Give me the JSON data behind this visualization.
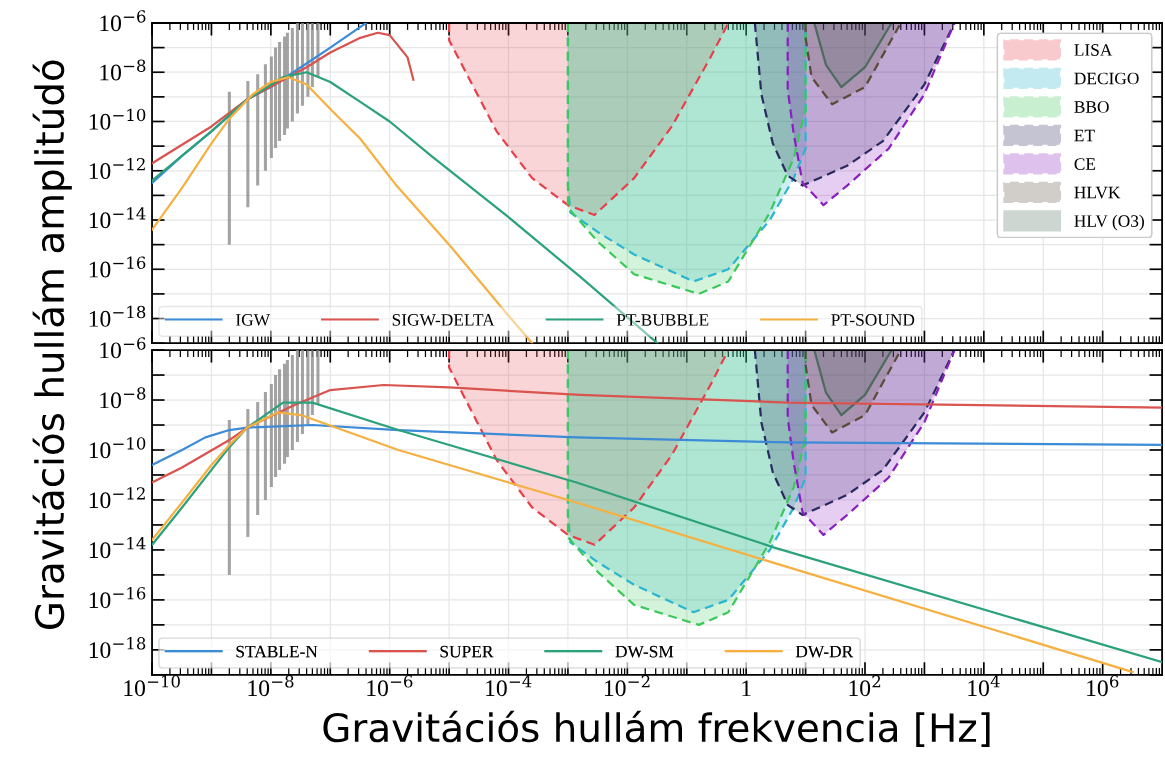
{
  "chart_data": [
    {
      "type": "line",
      "log": "xy",
      "grid": true,
      "legend": "bottom",
      "tick_labels": "y",
      "xlim": [
        1e-10,
        10000000.0
      ],
      "ylim": [
        1e-19,
        1e-06
      ],
      "xticks": [
        {
          "value": 1e-10,
          "label": null
        },
        {
          "value": 1e-09,
          "label": null
        },
        {
          "value": 1e-08,
          "label": null
        },
        {
          "value": 1e-07,
          "label": null
        },
        {
          "value": 1e-06,
          "label": null
        },
        {
          "value": 1e-05,
          "label": null
        },
        {
          "value": 0.0001,
          "label": null
        },
        {
          "value": 0.001,
          "label": null
        },
        {
          "value": 0.01,
          "label": null
        },
        {
          "value": 0.1,
          "label": null
        },
        {
          "value": 1,
          "label": null
        },
        {
          "value": 10,
          "label": null
        },
        {
          "value": 100,
          "label": null
        },
        {
          "value": 1000,
          "label": null
        },
        {
          "value": 10000,
          "label": null
        },
        {
          "value": 100000,
          "label": null
        },
        {
          "value": 1000000,
          "label": null
        }
      ],
      "yticks": [
        {
          "value": 1e-19,
          "label": null
        },
        {
          "value": 1e-18,
          "label": "10$^{−18}$"
        },
        {
          "value": 1e-17,
          "label": null
        },
        {
          "value": 1e-16,
          "label": "10$^{−16}$"
        },
        {
          "value": 1e-15,
          "label": null
        },
        {
          "value": 1e-14,
          "label": "10$^{−14}$"
        },
        {
          "value": 1e-13,
          "label": null
        },
        {
          "value": 1e-12,
          "label": "10$^{−12}$"
        },
        {
          "value": 1e-11,
          "label": null
        },
        {
          "value": 1e-10,
          "label": "10$^{−10}$"
        },
        {
          "value": 1e-09,
          "label": null
        },
        {
          "value": 1e-08,
          "label": "10$^{−8}$"
        },
        {
          "value": 1e-07,
          "label": null
        },
        {
          "value": 1e-06,
          "label": "10$^{−6}$"
        }
      ],
      "series": [
        {
          "name": "LISA",
          "type": "area",
          "line_style": "dashed",
          "color": "#e8404a",
          "x": [
            1e-05,
            1e-05,
            6.3e-05,
            0.00025,
            0.001,
            0.0028,
            0.013,
            0.056,
            0.25,
            0.5
          ],
          "values": [
            1e-06,
            2e-07,
            4e-11,
            5e-13,
            4e-14,
            1.6e-14,
            5e-13,
            6.3e-11,
            4e-08,
            1e-06
          ]
        },
        {
          "name": "DECIGO",
          "type": "area",
          "line_style": "dashed",
          "color": "#2bb5d0",
          "x": [
            0.001,
            0.001,
            0.0011,
            0.0032,
            0.013,
            0.13,
            0.5,
            2.5,
            6.3,
            10,
            10
          ],
          "values": [
            1e-06,
            2.5e-13,
            2e-14,
            3.2e-15,
            4e-16,
            3.2e-17,
            1e-16,
            1e-14,
            5e-13,
            7.9e-12,
            1e-06
          ]
        },
        {
          "name": "BBO",
          "type": "area",
          "line_style": "dashed",
          "color": "#3cc85a",
          "x": [
            0.001,
            0.001,
            0.0032,
            0.013,
            0.16,
            0.5,
            2.5,
            6.3,
            10,
            10
          ],
          "values": [
            1e-06,
            3.2e-14,
            1.3e-15,
            6.3e-17,
            1e-17,
            3.2e-17,
            2e-14,
            3.2e-12,
            3.2e-10,
            1e-06
          ]
        },
        {
          "name": "ET",
          "type": "area",
          "line_style": "dashed",
          "color": "#2a2a60",
          "x": [
            1.4,
            1.8,
            2.8,
            5,
            8.9,
            50,
            200,
            1000,
            3200
          ],
          "values": [
            1e-06,
            1.3e-09,
            1.3e-11,
            6.3e-13,
            2.5e-13,
            1.6e-12,
            1.6e-11,
            3.2e-09,
            1e-06
          ]
        },
        {
          "name": "CE",
          "type": "area",
          "line_style": "dashed",
          "color": "#8a1fc0",
          "x": [
            5,
            5,
            6.3,
            8.9,
            20,
            50,
            250,
            1000,
            3200
          ],
          "values": [
            1e-06,
            2e-09,
            3.2e-11,
            3.2e-13,
            4e-14,
            2.5e-13,
            7.9e-12,
            1.3e-09,
            1e-06
          ]
        },
        {
          "name": "HLVK",
          "type": "area",
          "line_style": "dashed",
          "color": "#5a4a38",
          "x": [
            10,
            10,
            12.6,
            28,
            100,
            400
          ],
          "values": [
            1e-06,
            2.5e-07,
            6.3e-09,
            5e-10,
            2.5e-09,
            1e-06
          ]
        },
        {
          "name": "HLV (O3)",
          "type": "area",
          "line_style": "solid",
          "color": "#4d6b5e",
          "x": [
            14,
            22,
            40,
            100,
            280
          ],
          "values": [
            1e-06,
            2e-08,
            2.5e-09,
            1.6e-08,
            1e-06
          ]
        },
        {
          "name": "IGW",
          "color": "#3b8bd6",
          "x": [
            1e-10,
            3.2e-10,
            1e-09,
            4e-09,
            1e-08,
            3.2e-08,
            1e-07,
            4e-07
          ],
          "values": [
            3.2e-13,
            4e-12,
            4e-11,
            7.9e-10,
            2.5e-09,
            1.6e-08,
            1e-07,
            1e-06
          ]
        },
        {
          "name": "SIGW-DELTA",
          "color": "#d9534f",
          "x": [
            1e-10,
            1e-09,
            4e-09,
            4e-08,
            1e-07,
            3.2e-07,
            6.3e-07,
            1e-06,
            2e-06,
            2.5e-06
          ],
          "values": [
            2e-12,
            6.3e-11,
            7.9e-10,
            1.6e-08,
            6.3e-08,
            2.5e-07,
            4e-07,
            3.2e-07,
            4e-08,
            5e-09
          ]
        },
        {
          "name": "PT-BUBBLE",
          "color": "#2ca27a",
          "x": [
            1e-10,
            1e-09,
            4e-09,
            1.6e-08,
            4e-08,
            1e-07,
            3.2e-07,
            1e-06,
            5e-06,
            0.0001,
            0.0016,
            0.032
          ],
          "values": [
            4e-13,
            4e-11,
            7.9e-10,
            6.3e-09,
            1e-08,
            4e-09,
            6.3e-10,
            1e-10,
            4e-12,
            1.3e-14,
            5e-17,
            1e-19
          ]
        },
        {
          "name": "PT-SOUND",
          "color": "#f5b041",
          "x": [
            1e-10,
            3.2e-10,
            1e-09,
            2e-09,
            5e-09,
            1e-08,
            2e-08,
            4e-08,
            1e-07,
            3.2e-07,
            1.3e-06,
            1e-05,
            0.0001,
            0.00025
          ],
          "values": [
            4e-15,
            2e-13,
            1.3e-11,
            1.3e-10,
            1.3e-09,
            4e-09,
            6.3e-09,
            3.2e-09,
            3.2e-10,
            2e-11,
            2.5e-13,
            1e-15,
            1.3e-18,
            1e-19
          ]
        },
        {
          "type": "bar",
          "color": "#8c8c8c",
          "x": [
            2e-09,
            4.1e-09,
            6e-09,
            8.1e-09,
            1.02e-08,
            1.2e-08,
            1.4e-08,
            1.7e-08,
            1.9e-08,
            2.3e-08,
            2.8e-08,
            3.4e-08,
            4.2e-08,
            5e-08,
            6.2e-08
          ],
          "base": [
            1e-15,
            3.3e-14,
            2.5e-13,
            1e-12,
            3.3e-12,
            8.3e-12,
            1.6e-11,
            2.8e-11,
            5.2e-11,
            1e-10,
            2.1e-10,
            4.4e-10,
            1e-09,
            2.5e-09,
            6.3e-09
          ],
          "values": [
            1.6e-09,
            4.4e-09,
            8.3e-09,
            2.1e-08,
            4.4e-08,
            1e-07,
            1.7e-07,
            2.8e-07,
            4e-07,
            6.3e-07,
            1e-06,
            1e-06,
            9.9e-07,
            9.9e-07,
            9.9e-07
          ]
        }
      ]
    },
    {
      "type": "line",
      "log": "xy",
      "grid": true,
      "legend": "bottom",
      "xlabel": "Gravitációs hullám frekvencia [Hz]",
      "ylabel": "Gravitációs hullám amplitúdó",
      "xlim": [
        1e-10,
        10000000.0
      ],
      "ylim": [
        1e-19,
        1e-06
      ],
      "xticks": [
        {
          "value": 1e-10,
          "label": "10$^{−10}$"
        },
        {
          "value": 1e-09,
          "label": null
        },
        {
          "value": 1e-08,
          "label": "10$^{−8}$"
        },
        {
          "value": 1e-07,
          "label": null
        },
        {
          "value": 1e-06,
          "label": "10$^{−6}$"
        },
        {
          "value": 1e-05,
          "label": null
        },
        {
          "value": 0.0001,
          "label": "10$^{−4}$"
        },
        {
          "value": 0.001,
          "label": null
        },
        {
          "value": 0.01,
          "label": "10$^{−2}$"
        },
        {
          "value": 0.1,
          "label": null
        },
        {
          "value": 1,
          "label": "1"
        },
        {
          "value": 10,
          "label": null
        },
        {
          "value": 100,
          "label": "10$^{2}$"
        },
        {
          "value": 1000,
          "label": null
        },
        {
          "value": 10000,
          "label": "10$^{4}$"
        },
        {
          "value": 100000,
          "label": null
        },
        {
          "value": 1000000,
          "label": "10$^{6}$"
        }
      ],
      "yticks": [
        {
          "value": 1e-19,
          "label": null
        },
        {
          "value": 1e-18,
          "label": "10$^{−18}$"
        },
        {
          "value": 1e-17,
          "label": null
        },
        {
          "value": 1e-16,
          "label": "10$^{−16}$"
        },
        {
          "value": 1e-15,
          "label": null
        },
        {
          "value": 1e-14,
          "label": "10$^{−14}$"
        },
        {
          "value": 1e-13,
          "label": null
        },
        {
          "value": 1e-12,
          "label": "10$^{−12}$"
        },
        {
          "value": 1e-11,
          "label": null
        },
        {
          "value": 1e-10,
          "label": "10$^{−10}$"
        },
        {
          "value": 1e-09,
          "label": null
        },
        {
          "value": 1e-08,
          "label": "10$^{−8}$"
        },
        {
          "value": 1e-07,
          "label": null
        },
        {
          "value": 1e-06,
          "label": "10$^{−6}$"
        }
      ],
      "series": [
        {
          "type": "area",
          "line_style": "dashed",
          "color": "#e8404a",
          "x": [
            1e-05,
            1e-05,
            6.3e-05,
            0.00025,
            0.001,
            0.0028,
            0.013,
            0.056,
            0.25,
            0.5
          ],
          "values": [
            1e-06,
            2e-07,
            4e-11,
            5e-13,
            4e-14,
            1.6e-14,
            5e-13,
            6.3e-11,
            4e-08,
            1e-06
          ]
        },
        {
          "type": "area",
          "line_style": "dashed",
          "color": "#2bb5d0",
          "x": [
            0.001,
            0.001,
            0.0011,
            0.0032,
            0.013,
            0.13,
            0.5,
            2.5,
            6.3,
            10,
            10
          ],
          "values": [
            1e-06,
            2.5e-13,
            2e-14,
            3.2e-15,
            4e-16,
            3.2e-17,
            1e-16,
            1e-14,
            5e-13,
            7.9e-12,
            1e-06
          ]
        },
        {
          "type": "area",
          "line_style": "dashed",
          "color": "#3cc85a",
          "x": [
            0.001,
            0.001,
            0.0032,
            0.013,
            0.16,
            0.5,
            2.5,
            6.3,
            10,
            10
          ],
          "values": [
            1e-06,
            3.2e-14,
            1.3e-15,
            6.3e-17,
            1e-17,
            3.2e-17,
            2e-14,
            3.2e-12,
            3.2e-10,
            1e-06
          ]
        },
        {
          "type": "area",
          "line_style": "dashed",
          "color": "#2a2a60",
          "x": [
            1.4,
            1.8,
            2.8,
            5,
            8.9,
            50,
            200,
            1000,
            3200
          ],
          "values": [
            1e-06,
            1.3e-09,
            1.3e-11,
            6.3e-13,
            2.5e-13,
            1.6e-12,
            1.6e-11,
            3.2e-09,
            1e-06
          ]
        },
        {
          "type": "area",
          "line_style": "dashed",
          "color": "#8a1fc0",
          "x": [
            5,
            5,
            6.3,
            8.9,
            20,
            50,
            250,
            1000,
            3200
          ],
          "values": [
            1e-06,
            2e-09,
            3.2e-11,
            3.2e-13,
            4e-14,
            2.5e-13,
            7.9e-12,
            1.3e-09,
            1e-06
          ]
        },
        {
          "type": "area",
          "line_style": "dashed",
          "color": "#5a4a38",
          "x": [
            10,
            10,
            12.6,
            28,
            100,
            400
          ],
          "values": [
            1e-06,
            2.5e-07,
            6.3e-09,
            5e-10,
            2.5e-09,
            1e-06
          ]
        },
        {
          "type": "area",
          "line_style": "solid",
          "color": "#4d6b5e",
          "x": [
            14,
            22,
            40,
            100,
            280
          ],
          "values": [
            1e-06,
            2e-08,
            2.5e-09,
            1.6e-08,
            1e-06
          ]
        },
        {
          "name": "STABLE-N",
          "color": "#3b8bd6",
          "x": [
            1e-10,
            3.2e-10,
            7.9e-10,
            2e-09,
            4e-09,
            5e-08,
            1.4e-06,
            0.0014,
            5,
            10000000.0
          ],
          "values": [
            2.5e-11,
            1e-10,
            3.2e-10,
            6.3e-10,
            7.9e-10,
            1e-09,
            6.3e-10,
            3.2e-10,
            2e-10,
            1.6e-10
          ]
        },
        {
          "name": "SUPER",
          "color": "#d9534f",
          "x": [
            1e-10,
            3.2e-10,
            2e-09,
            4e-09,
            2.5e-08,
            1e-07,
            7.9e-07,
            1e-05,
            0.0016,
            5,
            10000000.0
          ],
          "values": [
            5e-12,
            2e-11,
            2.5e-10,
            7.9e-10,
            6.3e-09,
            2.5e-08,
            4e-08,
            3.2e-08,
            1.6e-08,
            7.9e-09,
            5e-09
          ]
        },
        {
          "name": "DW-SM",
          "color": "#2ca27a",
          "x": [
            1e-10,
            3.2e-10,
            1e-09,
            2e-09,
            4e-09,
            1.6e-08,
            5e-08,
            1.4e-06,
            0.0014,
            2.8,
            10000000.0
          ],
          "values": [
            1.6e-14,
            5e-13,
            1.6e-11,
            1.3e-10,
            7.9e-10,
            7.9e-09,
            7.9e-09,
            6.3e-10,
            5e-12,
            1.3e-14,
            3.2e-19
          ]
        },
        {
          "name": "DW-DR",
          "color": "#f5b041",
          "x": [
            1e-10,
            3.2e-10,
            1e-09,
            2e-09,
            4e-09,
            1.3e-08,
            3.2e-08,
            1.4e-06,
            0.0014,
            2,
            3200000.0
          ],
          "values": [
            2.5e-14,
            7.9e-13,
            2.5e-11,
            1.6e-10,
            7.9e-10,
            3.2e-09,
            2.5e-09,
            1e-10,
            7.9e-13,
            4e-15,
            1.3e-19
          ]
        },
        {
          "type": "bar",
          "color": "#8c8c8c",
          "x": [
            2e-09,
            4.1e-09,
            6e-09,
            8.1e-09,
            1.02e-08,
            1.2e-08,
            1.4e-08,
            1.7e-08,
            1.9e-08,
            2.3e-08,
            2.8e-08,
            3.4e-08,
            4.2e-08,
            5e-08,
            6.2e-08
          ],
          "base": [
            1e-15,
            3.3e-14,
            2.5e-13,
            1e-12,
            3.3e-12,
            8.3e-12,
            1.6e-11,
            2.8e-11,
            5.2e-11,
            1e-10,
            2.1e-10,
            4.4e-10,
            1e-09,
            2.5e-09,
            6.3e-09
          ],
          "values": [
            1.6e-09,
            4.4e-09,
            8.3e-09,
            2.1e-08,
            4.4e-08,
            1e-07,
            1.7e-07,
            2.8e-07,
            4e-07,
            6.3e-07,
            1e-06,
            1e-06,
            9.9e-07,
            9.9e-07,
            9.9e-07
          ]
        }
      ]
    }
  ]
}
